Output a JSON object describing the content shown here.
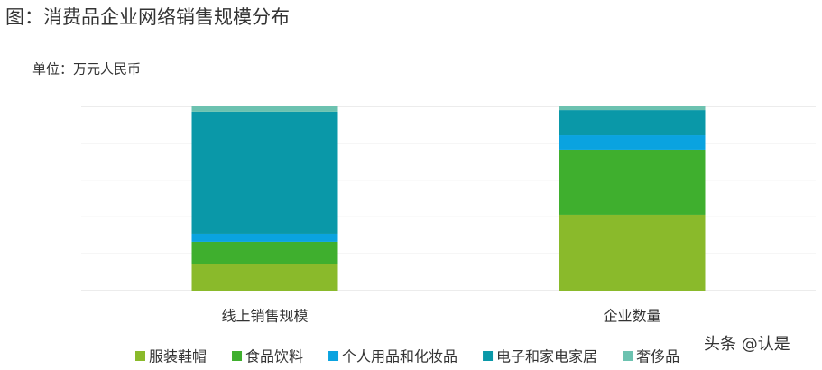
{
  "chart_data": {
    "type": "stacked_bar",
    "title": "图：消费品企业网络销售规模分布",
    "unit_label": "单位：万元人民币",
    "categories": [
      "线上销售规模",
      "企业数量"
    ],
    "series": [
      {
        "name": "服装鞋帽",
        "color": "#8aba2b",
        "values": [
          14.7,
          41.2
        ]
      },
      {
        "name": "食品饮料",
        "color": "#3faf2e",
        "values": [
          11.8,
          35.3
        ]
      },
      {
        "name": "个人用品和化妆品",
        "color": "#0aa3e0",
        "values": [
          4.4,
          7.8
        ]
      },
      {
        "name": "电子和家电家居",
        "color": "#0a98a8",
        "values": [
          66.2,
          13.7
        ]
      },
      {
        "name": "奢侈品",
        "color": "#6cc2b0",
        "values": [
          2.9,
          2.0
        ]
      }
    ],
    "ylim": [
      0,
      100
    ],
    "yticks": [
      0,
      20,
      40,
      60,
      80,
      100
    ],
    "grid": true,
    "legend": "bottom",
    "watermark": "头条 @认是"
  }
}
